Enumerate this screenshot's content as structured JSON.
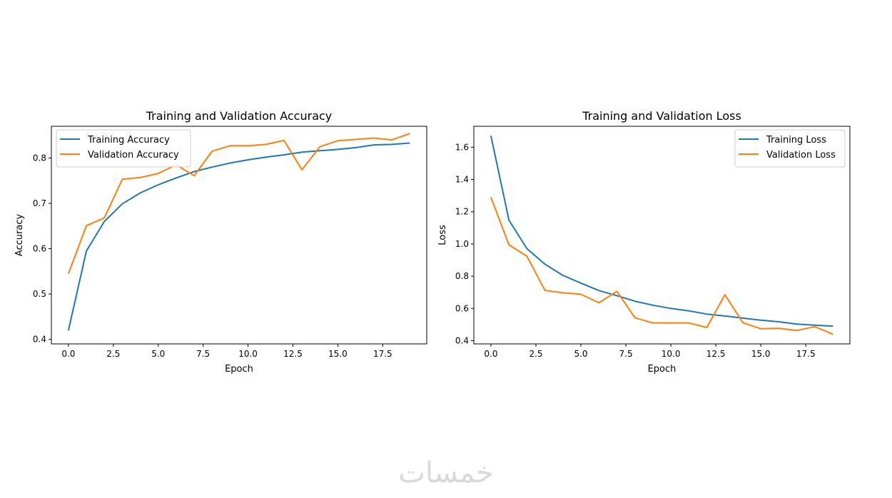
{
  "watermark": "خمسات",
  "chart_data": [
    {
      "type": "line",
      "title": "Training and Validation Accuracy",
      "xlabel": "Epoch",
      "ylabel": "Accuracy",
      "x": [
        0,
        1,
        2,
        3,
        4,
        5,
        6,
        7,
        8,
        9,
        10,
        11,
        12,
        13,
        14,
        15,
        16,
        17,
        18,
        19
      ],
      "xlim": [
        -0.95,
        19.95
      ],
      "ylim": [
        0.39,
        0.87
      ],
      "xticks": [
        0.0,
        2.5,
        5.0,
        7.5,
        10.0,
        12.5,
        15.0,
        17.5
      ],
      "xtick_labels": [
        "0.0",
        "2.5",
        "5.0",
        "7.5",
        "10.0",
        "12.5",
        "15.0",
        "17.5"
      ],
      "yticks": [
        0.4,
        0.5,
        0.6,
        0.7,
        0.8
      ],
      "ytick_labels": [
        "0.4",
        "0.5",
        "0.6",
        "0.7",
        "0.8"
      ],
      "legend_position": "upper-left",
      "colors": [
        "#1f77b4",
        "#ff7f0e"
      ],
      "series": [
        {
          "name": "Training Accuracy",
          "values": [
            0.42,
            0.595,
            0.66,
            0.699,
            0.723,
            0.741,
            0.756,
            0.77,
            0.78,
            0.789,
            0.796,
            0.802,
            0.807,
            0.813,
            0.816,
            0.819,
            0.823,
            0.829,
            0.83,
            0.833
          ]
        },
        {
          "name": "Validation Accuracy",
          "values": [
            0.545,
            0.651,
            0.668,
            0.753,
            0.757,
            0.766,
            0.785,
            0.761,
            0.815,
            0.827,
            0.827,
            0.83,
            0.839,
            0.774,
            0.825,
            0.838,
            0.841,
            0.844,
            0.84,
            0.854
          ]
        }
      ]
    },
    {
      "type": "line",
      "title": "Training and Validation Loss",
      "xlabel": "Epoch",
      "ylabel": "Loss",
      "x": [
        0,
        1,
        2,
        3,
        4,
        5,
        6,
        7,
        8,
        9,
        10,
        11,
        12,
        13,
        14,
        15,
        16,
        17,
        18,
        19
      ],
      "xlim": [
        -0.95,
        19.95
      ],
      "ylim": [
        0.38,
        1.73
      ],
      "xticks": [
        0.0,
        2.5,
        5.0,
        7.5,
        10.0,
        12.5,
        15.0,
        17.5
      ],
      "xtick_labels": [
        "0.0",
        "2.5",
        "5.0",
        "7.5",
        "10.0",
        "12.5",
        "15.0",
        "17.5"
      ],
      "yticks": [
        0.4,
        0.6,
        0.8,
        1.0,
        1.2,
        1.4,
        1.6
      ],
      "ytick_labels": [
        "0.4",
        "0.6",
        "0.8",
        "1.0",
        "1.2",
        "1.4",
        "1.6"
      ],
      "legend_position": "upper-right",
      "colors": [
        "#1f77b4",
        "#ff7f0e"
      ],
      "series": [
        {
          "name": "Training Loss",
          "values": [
            1.67,
            1.148,
            0.971,
            0.875,
            0.805,
            0.757,
            0.711,
            0.679,
            0.645,
            0.62,
            0.6,
            0.585,
            0.565,
            0.553,
            0.54,
            0.527,
            0.517,
            0.503,
            0.496,
            0.49
          ]
        },
        {
          "name": "Validation Loss",
          "values": [
            1.288,
            0.995,
            0.924,
            0.712,
            0.697,
            0.688,
            0.635,
            0.706,
            0.542,
            0.51,
            0.51,
            0.51,
            0.482,
            0.685,
            0.512,
            0.474,
            0.477,
            0.463,
            0.487,
            0.44
          ]
        }
      ]
    }
  ]
}
